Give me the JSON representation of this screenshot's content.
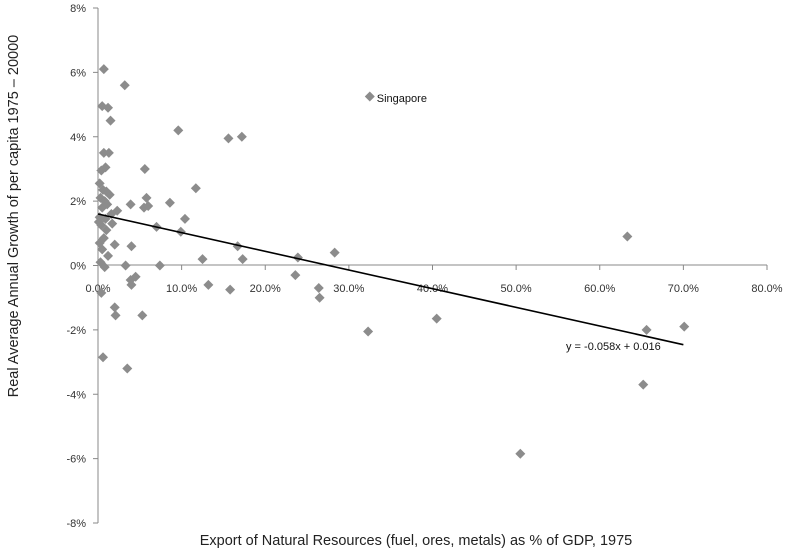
{
  "chart_data": {
    "type": "scatter",
    "title": "",
    "xlabel": "Export of Natural Resources (fuel, ores, metals) as % of GDP, 1975",
    "ylabel": "Real Average Annual Growth of per  capita 1975 – 20000",
    "xlim": [
      0,
      80
    ],
    "ylim": [
      -8,
      8
    ],
    "x_ticks": [
      "0.0%",
      "10.0%",
      "20.0%",
      "30.0%",
      "40.0%",
      "50.0%",
      "60.0%",
      "70.0%",
      "80.0%"
    ],
    "y_ticks": [
      "8%",
      "6%",
      "4%",
      "2%",
      "0%",
      "-2%",
      "-4%",
      "-6%",
      "-8%"
    ],
    "grid": false,
    "legend": "none",
    "marker_color": "#8c8c8c",
    "trendline": {
      "equation_label": "y = -0.058x + 0.016",
      "slope": -0.058,
      "intercept": 1.6,
      "x_range": [
        0,
        70
      ],
      "color": "#000000"
    },
    "annotations": [
      {
        "text": "Singapore",
        "x": 32.5,
        "y": 5.2
      }
    ],
    "points": [
      {
        "x": 0.7,
        "y": 6.1
      },
      {
        "x": 3.2,
        "y": 5.6
      },
      {
        "x": 0.5,
        "y": 4.95
      },
      {
        "x": 1.2,
        "y": 4.9
      },
      {
        "x": 1.5,
        "y": 4.5
      },
      {
        "x": 32.5,
        "y": 5.25
      },
      {
        "x": 9.6,
        "y": 4.2
      },
      {
        "x": 15.6,
        "y": 3.95
      },
      {
        "x": 17.2,
        "y": 4.0
      },
      {
        "x": 0.7,
        "y": 3.5
      },
      {
        "x": 1.3,
        "y": 3.5
      },
      {
        "x": 0.9,
        "y": 3.05
      },
      {
        "x": 0.4,
        "y": 2.95
      },
      {
        "x": 5.6,
        "y": 3.0
      },
      {
        "x": 0.2,
        "y": 2.55
      },
      {
        "x": 0.6,
        "y": 2.35
      },
      {
        "x": 1.0,
        "y": 2.3
      },
      {
        "x": 1.4,
        "y": 2.2
      },
      {
        "x": 0.3,
        "y": 2.1
      },
      {
        "x": 0.8,
        "y": 2.0
      },
      {
        "x": 1.1,
        "y": 1.9
      },
      {
        "x": 0.5,
        "y": 1.8
      },
      {
        "x": 1.6,
        "y": 1.6
      },
      {
        "x": 2.3,
        "y": 1.7
      },
      {
        "x": 0.2,
        "y": 1.5
      },
      {
        "x": 0.9,
        "y": 1.45
      },
      {
        "x": 1.7,
        "y": 1.3
      },
      {
        "x": 0.4,
        "y": 1.25
      },
      {
        "x": 1.0,
        "y": 1.1
      },
      {
        "x": 0.1,
        "y": 1.35
      },
      {
        "x": 0.7,
        "y": 0.85
      },
      {
        "x": 0.2,
        "y": 0.7
      },
      {
        "x": 0.5,
        "y": 0.5
      },
      {
        "x": 1.2,
        "y": 0.3
      },
      {
        "x": 0.3,
        "y": 0.1
      },
      {
        "x": 0.8,
        "y": -0.05
      },
      {
        "x": 0.4,
        "y": -0.85
      },
      {
        "x": 2.0,
        "y": 0.65
      },
      {
        "x": 4.0,
        "y": 0.6
      },
      {
        "x": 3.9,
        "y": 1.9
      },
      {
        "x": 5.8,
        "y": 2.1
      },
      {
        "x": 5.5,
        "y": 1.8
      },
      {
        "x": 6.0,
        "y": 1.85
      },
      {
        "x": 8.6,
        "y": 1.95
      },
      {
        "x": 11.7,
        "y": 2.4
      },
      {
        "x": 10.4,
        "y": 1.45
      },
      {
        "x": 9.9,
        "y": 1.05
      },
      {
        "x": 7.0,
        "y": 1.2
      },
      {
        "x": 12.5,
        "y": 0.2
      },
      {
        "x": 3.3,
        "y": 0.0
      },
      {
        "x": 7.4,
        "y": 0.0
      },
      {
        "x": 3.9,
        "y": -0.45
      },
      {
        "x": 4.5,
        "y": -0.35
      },
      {
        "x": 4.0,
        "y": -0.6
      },
      {
        "x": 13.2,
        "y": -0.6
      },
      {
        "x": 15.8,
        "y": -0.75
      },
      {
        "x": 16.7,
        "y": 0.6
      },
      {
        "x": 17.3,
        "y": 0.2
      },
      {
        "x": 2.0,
        "y": -1.3
      },
      {
        "x": 2.1,
        "y": -1.55
      },
      {
        "x": 5.3,
        "y": -1.55
      },
      {
        "x": 23.9,
        "y": 0.25
      },
      {
        "x": 23.6,
        "y": -0.3
      },
      {
        "x": 26.4,
        "y": -0.7
      },
      {
        "x": 26.5,
        "y": -1.0
      },
      {
        "x": 28.3,
        "y": 0.4
      },
      {
        "x": 32.3,
        "y": -2.05
      },
      {
        "x": 40.5,
        "y": -1.65
      },
      {
        "x": 0.6,
        "y": -2.85
      },
      {
        "x": 3.5,
        "y": -3.2
      },
      {
        "x": 50.5,
        "y": -5.85
      },
      {
        "x": 63.3,
        "y": 0.9
      },
      {
        "x": 65.6,
        "y": -2.0
      },
      {
        "x": 70.1,
        "y": -1.9
      },
      {
        "x": 65.2,
        "y": -3.7
      }
    ]
  }
}
